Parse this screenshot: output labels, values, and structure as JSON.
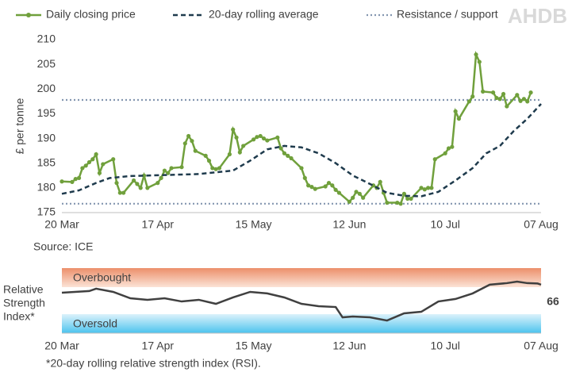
{
  "chart_data": [
    {
      "type": "line",
      "y_label": "£ per tonne",
      "source": "Source: ICE",
      "logo": "AHDB",
      "xlim": [
        0,
        140
      ],
      "xticks": [
        {
          "value": 0,
          "label": "20 Mar"
        },
        {
          "value": 28,
          "label": "17 Apr"
        },
        {
          "value": 56,
          "label": "15 May"
        },
        {
          "value": 84,
          "label": "12 Jun"
        },
        {
          "value": 112,
          "label": "10 Jul"
        },
        {
          "value": 140,
          "label": "07 Aug"
        }
      ],
      "ylim": [
        175,
        210
      ],
      "yticks": [
        175,
        180,
        185,
        190,
        195,
        200,
        205,
        210
      ],
      "series": [
        {
          "name": "Daily closing price",
          "color": "#70a03c",
          "markers": true,
          "x": [
            0,
            3,
            4,
            5,
            6,
            7,
            8,
            9,
            10,
            11,
            12,
            15,
            16,
            17,
            18,
            21,
            22,
            23,
            24,
            25,
            28,
            29,
            30,
            31,
            32,
            35,
            36,
            37,
            38,
            39,
            42,
            43,
            44,
            45,
            46,
            49,
            50,
            51,
            52,
            53,
            56,
            57,
            58,
            59,
            60,
            63,
            64,
            65,
            66,
            67,
            70,
            71,
            72,
            73,
            74,
            77,
            78,
            79,
            80,
            81,
            84,
            85,
            86,
            87,
            88,
            91,
            92,
            93,
            94,
            95,
            98,
            99,
            100,
            101,
            102,
            105,
            106,
            107,
            108,
            109,
            112,
            113,
            114,
            115,
            116,
            119,
            120,
            121,
            122,
            123,
            126,
            127,
            128,
            129,
            130,
            133,
            134,
            135,
            136,
            137
          ],
          "values": [
            181.3,
            181.2,
            181.8,
            182.0,
            184.0,
            184.5,
            185.2,
            185.8,
            186.8,
            183.0,
            184.8,
            185.8,
            181.0,
            179.0,
            179.0,
            181.5,
            180.8,
            180.0,
            182.5,
            180.0,
            181.0,
            182.0,
            183.5,
            183.0,
            184.0,
            184.2,
            189.0,
            190.5,
            189.5,
            187.5,
            186.5,
            185.5,
            184.0,
            183.8,
            184.0,
            186.8,
            191.8,
            190.2,
            187.2,
            188.5,
            189.8,
            190.3,
            190.5,
            190.0,
            189.6,
            190.2,
            188.0,
            187.0,
            186.5,
            186.0,
            184.0,
            182.0,
            180.5,
            180.2,
            179.8,
            180.3,
            181.0,
            180.5,
            179.6,
            179.0,
            177.2,
            178.0,
            179.2,
            178.8,
            178.0,
            180.5,
            180.0,
            181.2,
            179.0,
            177.0,
            177.0,
            176.8,
            178.8,
            177.8,
            177.8,
            180.0,
            179.7,
            180.0,
            180.0,
            185.8,
            187.0,
            188.0,
            188.3,
            195.5,
            194.0,
            197.5,
            198.5,
            207.0,
            205.5,
            199.5,
            199.3,
            198.2,
            198.0,
            199.0,
            196.5,
            198.8,
            197.6,
            198.0,
            197.5,
            199.3
          ]
        },
        {
          "name": "20-day rolling average",
          "color": "#1f3b4d",
          "dashed": true,
          "x": [
            0,
            5,
            10,
            14,
            20,
            30,
            40,
            50,
            55,
            60,
            65,
            70,
            75,
            80,
            85,
            90,
            95,
            100,
            105,
            110,
            115,
            120,
            124,
            128,
            132,
            136,
            140
          ],
          "values": [
            178.8,
            179.5,
            181.0,
            182.0,
            182.4,
            182.6,
            182.8,
            183.5,
            185.5,
            187.8,
            188.5,
            188.2,
            187.0,
            185.0,
            182.5,
            180.8,
            179.0,
            178.4,
            178.3,
            179.2,
            181.5,
            184.0,
            187.0,
            188.5,
            191.5,
            194.0,
            197.0
          ]
        }
      ],
      "reference_lines": {
        "name": "Resistance / support",
        "color": "#8496b0",
        "values": [
          197.8,
          176.8
        ]
      }
    },
    {
      "type": "line",
      "y_label": [
        "Relative",
        "Strength",
        "Index*"
      ],
      "bands": [
        "Overbought",
        "Oversold"
      ],
      "footnote": "*20-day rolling relative strength index (RSI).",
      "xlim": [
        0,
        140
      ],
      "xticks": [
        {
          "value": 0,
          "label": "20 Mar"
        },
        {
          "value": 28,
          "label": "17 Apr"
        },
        {
          "value": 56,
          "label": "15 May"
        },
        {
          "value": 84,
          "label": "12 Jun"
        },
        {
          "value": 112,
          "label": "10 Jul"
        },
        {
          "value": 140,
          "label": "07 Aug"
        }
      ],
      "ylim": [
        25,
        80
      ],
      "series": [
        {
          "name": "RSI",
          "color": "#404040",
          "x": [
            0,
            8,
            10,
            15,
            20,
            25,
            30,
            35,
            40,
            45,
            50,
            55,
            60,
            65,
            70,
            75,
            80,
            82,
            85,
            90,
            95,
            100,
            105,
            110,
            115,
            120,
            125,
            130,
            133,
            136,
            139,
            140
          ],
          "values": [
            59.2,
            60.6,
            62.6,
            59.9,
            54.5,
            53.2,
            54.5,
            51.8,
            53.2,
            49.8,
            55.2,
            59.9,
            58.6,
            55.2,
            49.8,
            47.8,
            47.1,
            38.4,
            39.1,
            38.4,
            35.7,
            41.8,
            43.1,
            51.8,
            53.9,
            58.6,
            66.0,
            67.3,
            68.6,
            67.3,
            67.0,
            66
          ]
        }
      ],
      "end_label": 66
    }
  ]
}
